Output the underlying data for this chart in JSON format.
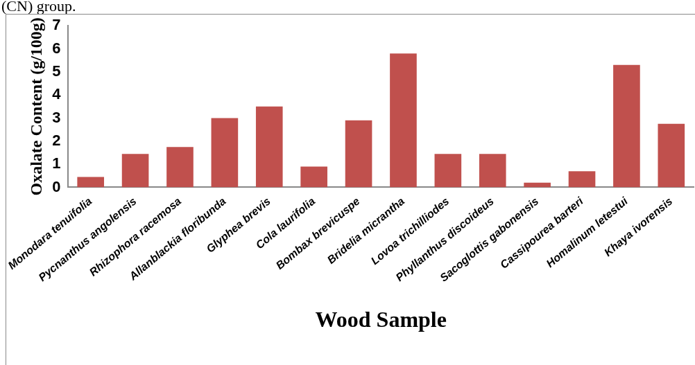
{
  "chart_data": {
    "type": "bar",
    "categories": [
      "Monodara tenuifolia",
      "Pycnanthus angolensis",
      "Rhizophora racemosa",
      "Allanblackia floribunda",
      "Glyphea brevis",
      "Cola laurifolia",
      "Bombax brevicuspe",
      "Bridelia micrantha",
      "Lovoa trichilliodes",
      "Phyllanthus discoideus",
      "Sacoglottis gabonensis",
      "Cassipourea barteri",
      "Homalinum letestui",
      "Khaya ivorensis"
    ],
    "values": [
      0.45,
      1.45,
      1.75,
      3.0,
      3.5,
      0.9,
      2.9,
      5.8,
      1.45,
      1.45,
      0.2,
      0.7,
      5.3,
      2.75
    ],
    "color": "#c0504d",
    "xlabel": "Wood Sample",
    "ylabel": "Oxalate Content (g/100g)",
    "ylim": [
      0,
      7
    ],
    "yticks": [
      0,
      1,
      2,
      3,
      4,
      5,
      6,
      7
    ],
    "grid": false,
    "legend": false,
    "annotations": [
      "(CN) group."
    ]
  }
}
